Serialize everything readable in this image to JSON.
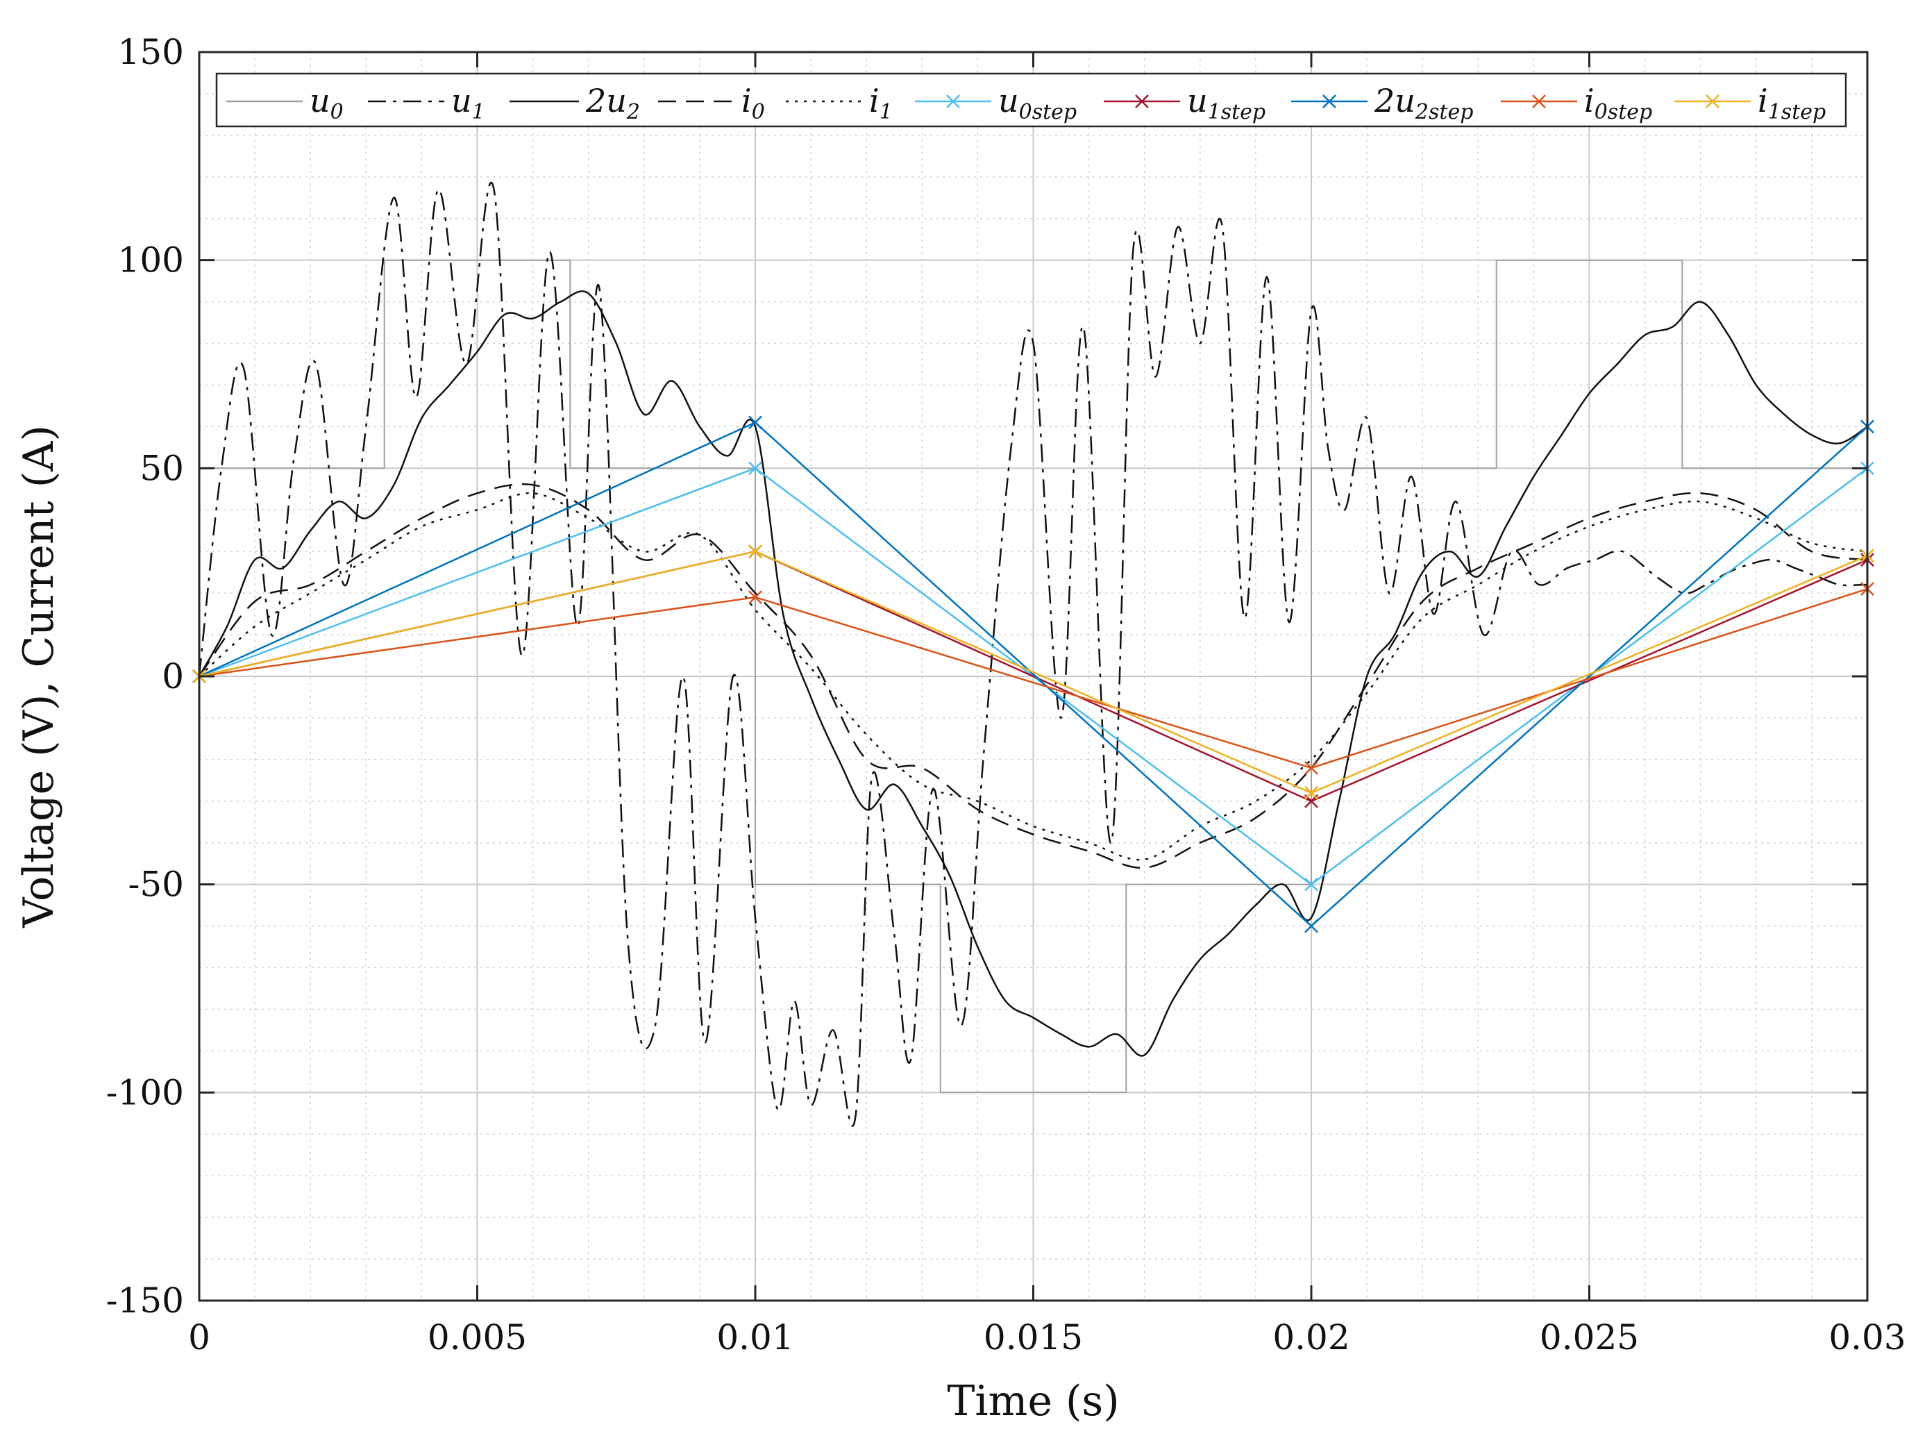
{
  "chart_data": {
    "type": "line",
    "title": "",
    "xlabel": "Time (s)",
    "ylabel": "Voltage (V), Current (A)",
    "xlim": [
      0,
      0.03
    ],
    "ylim": [
      -150,
      150
    ],
    "xticks": [
      0,
      0.005,
      0.01,
      0.015,
      0.02,
      0.025,
      0.03
    ],
    "xtick_labels": [
      "0",
      "0.005",
      "0.01",
      "0.015",
      "0.02",
      "0.025",
      "0.03"
    ],
    "yticks": [
      -150,
      -100,
      -50,
      0,
      50,
      100,
      150
    ],
    "ytick_labels": [
      "-150",
      "-100",
      "-50",
      "0",
      "50",
      "100",
      "150"
    ],
    "grid": true,
    "minor_grid": true,
    "legend_position": "top",
    "series": [
      {
        "name": "u0",
        "label_main": "u",
        "label_sub": "0",
        "color": "#a0a0a0",
        "style": "solid",
        "marker": "none",
        "x": [
          0,
          0.00333,
          0.00333,
          0.00667,
          0.00667,
          0.01,
          0.01,
          0.01333,
          0.01333,
          0.01667,
          0.01667,
          0.02,
          0.02,
          0.02333,
          0.02333,
          0.02667,
          0.02667,
          0.03
        ],
        "y": [
          50,
          50,
          100,
          100,
          50,
          50,
          -50,
          -50,
          -100,
          -100,
          -50,
          -50,
          50,
          50,
          100,
          100,
          50,
          50
        ]
      },
      {
        "name": "u1",
        "label_main": "u",
        "label_sub": "1",
        "color": "#111111",
        "style": "dashdot",
        "marker": "none",
        "x": [
          0,
          0.0004,
          0.0008,
          0.0013,
          0.0017,
          0.0021,
          0.0026,
          0.003,
          0.0035,
          0.0039,
          0.0043,
          0.0048,
          0.0053,
          0.0058,
          0.0063,
          0.0068,
          0.0072,
          0.0077,
          0.0082,
          0.0087,
          0.0091,
          0.0096,
          0.01,
          0.0104,
          0.0107,
          0.011,
          0.0114,
          0.0118,
          0.0121,
          0.0125,
          0.0128,
          0.0132,
          0.0137,
          0.0141,
          0.0146,
          0.015,
          0.0155,
          0.0159,
          0.0164,
          0.0168,
          0.0172,
          0.0176,
          0.018,
          0.0184,
          0.0188,
          0.0192,
          0.0196,
          0.02,
          0.0203,
          0.0206,
          0.021,
          0.0214,
          0.0218,
          0.0222,
          0.0226,
          0.0231,
          0.0236,
          0.0241,
          0.0246,
          0.0251,
          0.0256,
          0.0262,
          0.0267,
          0.0271,
          0.0275,
          0.0279,
          0.0283,
          0.0287,
          0.0291,
          0.0295,
          0.0299,
          0.03
        ],
        "y": [
          0,
          50,
          74,
          10,
          52,
          75,
          22,
          60,
          115,
          67,
          117,
          75,
          117,
          5,
          102,
          12,
          93,
          -62,
          -84,
          0,
          -88,
          0,
          -58,
          -104,
          -78,
          -103,
          -85,
          -106,
          -24,
          -62,
          -92,
          -27,
          -84,
          -20,
          55,
          80,
          -10,
          84,
          -40,
          103,
          72,
          108,
          80,
          108,
          14,
          96,
          13,
          88,
          55,
          40,
          62,
          20,
          48,
          15,
          42,
          10,
          30,
          22,
          26,
          28,
          30,
          24,
          20,
          22,
          25,
          27,
          28,
          26,
          24,
          22,
          22,
          22
        ]
      },
      {
        "name": "2u2",
        "label_main": "2u",
        "label_sub": "2",
        "color": "#111111",
        "style": "solid",
        "marker": "none",
        "x": [
          0,
          0.0005,
          0.001,
          0.0015,
          0.002,
          0.0025,
          0.003,
          0.0035,
          0.004,
          0.0045,
          0.005,
          0.0055,
          0.006,
          0.0065,
          0.007,
          0.0075,
          0.008,
          0.0085,
          0.009,
          0.0095,
          0.01,
          0.0105,
          0.011,
          0.0115,
          0.012,
          0.0125,
          0.013,
          0.0135,
          0.014,
          0.0145,
          0.015,
          0.0155,
          0.016,
          0.0165,
          0.017,
          0.0175,
          0.018,
          0.0185,
          0.019,
          0.0195,
          0.02,
          0.0205,
          0.021,
          0.0215,
          0.022,
          0.0225,
          0.023,
          0.0235,
          0.024,
          0.0245,
          0.025,
          0.0255,
          0.026,
          0.0265,
          0.027,
          0.0275,
          0.028,
          0.0285,
          0.029,
          0.0295,
          0.03
        ],
        "y": [
          0,
          12,
          28,
          26,
          35,
          42,
          38,
          46,
          62,
          70,
          78,
          87,
          86,
          90,
          92,
          80,
          63,
          71,
          60,
          53,
          60,
          15,
          -5,
          -20,
          -32,
          -26,
          -36,
          -48,
          -65,
          -78,
          -82,
          -86,
          -89,
          -86,
          -91,
          -78,
          -68,
          -62,
          -55,
          -50,
          -58,
          -30,
          0,
          10,
          25,
          30,
          24,
          36,
          48,
          58,
          68,
          75,
          82,
          84,
          90,
          82,
          70,
          63,
          58,
          56,
          60
        ]
      },
      {
        "name": "i0",
        "label_main": "i",
        "label_sub": "0",
        "color": "#111111",
        "style": "dashed",
        "marker": "none",
        "x": [
          0,
          0.001,
          0.002,
          0.003,
          0.004,
          0.005,
          0.006,
          0.007,
          0.008,
          0.009,
          0.01,
          0.011,
          0.012,
          0.013,
          0.014,
          0.015,
          0.016,
          0.017,
          0.018,
          0.019,
          0.02,
          0.021,
          0.022,
          0.023,
          0.024,
          0.025,
          0.026,
          0.027,
          0.028,
          0.029,
          0.03
        ],
        "y": [
          0,
          18,
          22,
          30,
          38,
          44,
          46,
          40,
          28,
          34,
          20,
          5,
          -20,
          -22,
          -32,
          -38,
          -42,
          -46,
          -40,
          -34,
          -22,
          -2,
          18,
          26,
          32,
          38,
          42,
          44,
          40,
          30,
          28
        ]
      },
      {
        "name": "i1",
        "label_main": "i",
        "label_sub": "1",
        "color": "#111111",
        "style": "dotted",
        "marker": "none",
        "x": [
          0,
          0.001,
          0.002,
          0.003,
          0.004,
          0.005,
          0.006,
          0.007,
          0.008,
          0.009,
          0.01,
          0.011,
          0.012,
          0.013,
          0.014,
          0.015,
          0.016,
          0.017,
          0.018,
          0.019,
          0.02,
          0.021,
          0.022,
          0.023,
          0.024,
          0.025,
          0.026,
          0.027,
          0.028,
          0.029,
          0.03
        ],
        "y": [
          0,
          12,
          20,
          28,
          36,
          40,
          44,
          38,
          30,
          34,
          16,
          2,
          -14,
          -26,
          -30,
          -36,
          -40,
          -44,
          -36,
          -30,
          -20,
          -4,
          14,
          22,
          30,
          36,
          40,
          42,
          38,
          32,
          30
        ]
      },
      {
        "name": "u0step",
        "label_main": "u",
        "label_sub": "0step",
        "color": "#4dbeee",
        "style": "solid",
        "marker": "x",
        "x": [
          0,
          0.01,
          0.02,
          0.03
        ],
        "y": [
          0,
          50,
          -50,
          50
        ]
      },
      {
        "name": "u1step",
        "label_main": "u",
        "label_sub": "1step",
        "color": "#a2142f",
        "style": "solid",
        "marker": "x",
        "x": [
          0,
          0.01,
          0.02,
          0.03
        ],
        "y": [
          0,
          30,
          -30,
          28
        ]
      },
      {
        "name": "2u2step",
        "label_main": "2u",
        "label_sub": "2step",
        "color": "#0072bd",
        "style": "solid",
        "marker": "x",
        "x": [
          0,
          0.01,
          0.02,
          0.03
        ],
        "y": [
          0,
          61,
          -60,
          60
        ]
      },
      {
        "name": "i0step",
        "label_main": "i",
        "label_sub": "0step",
        "color": "#d95319",
        "style": "solid",
        "marker": "x",
        "x": [
          0,
          0.01,
          0.02,
          0.03
        ],
        "y": [
          0,
          19,
          -22,
          21
        ]
      },
      {
        "name": "i1step",
        "label_main": "i",
        "label_sub": "1step",
        "color": "#edb120",
        "style": "solid",
        "marker": "x",
        "x": [
          0,
          0.01,
          0.02,
          0.03
        ],
        "y": [
          0,
          30,
          -28,
          29
        ]
      }
    ]
  }
}
